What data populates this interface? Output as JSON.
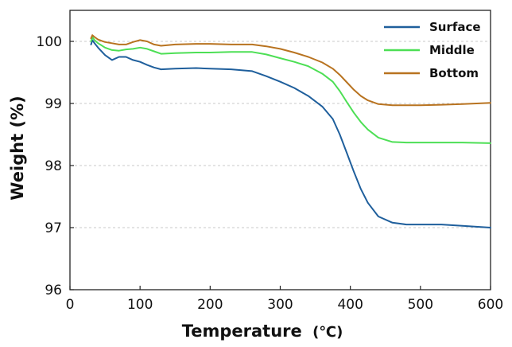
{
  "chart_data": {
    "type": "line",
    "title": "",
    "xlabel": "Temperature",
    "xlabel_unit": "(℃)",
    "ylabel": "Weight (%)",
    "xlim": [
      0,
      600
    ],
    "ylim": [
      96,
      100.5
    ],
    "xticks": [
      "0",
      "100",
      "200",
      "300",
      "400",
      "500",
      "600"
    ],
    "yticks": [
      "96",
      "97",
      "98",
      "99",
      "100"
    ],
    "grid": "horizontal-dashed",
    "legend_position": "top-right",
    "series": [
      {
        "name": "Surface",
        "color": "#1f5f9c",
        "x": [
          30,
          32,
          35,
          40,
          50,
          60,
          70,
          80,
          90,
          100,
          110,
          120,
          130,
          150,
          180,
          200,
          230,
          260,
          280,
          300,
          320,
          340,
          360,
          375,
          385,
          395,
          405,
          415,
          425,
          440,
          460,
          480,
          500,
          530,
          560,
          600
        ],
        "y": [
          99.95,
          100.02,
          99.97,
          99.9,
          99.78,
          99.7,
          99.75,
          99.75,
          99.7,
          99.67,
          99.62,
          99.58,
          99.55,
          99.56,
          99.57,
          99.56,
          99.55,
          99.52,
          99.44,
          99.35,
          99.25,
          99.12,
          98.95,
          98.75,
          98.5,
          98.2,
          97.9,
          97.62,
          97.4,
          97.18,
          97.08,
          97.05,
          97.05,
          97.05,
          97.03,
          97.0
        ]
      },
      {
        "name": "Middle",
        "color": "#4ddf55",
        "x": [
          30,
          32,
          35,
          40,
          50,
          60,
          70,
          80,
          90,
          100,
          110,
          120,
          130,
          150,
          180,
          200,
          230,
          260,
          280,
          300,
          320,
          340,
          360,
          375,
          385,
          395,
          405,
          415,
          425,
          440,
          460,
          480,
          500,
          530,
          560,
          600
        ],
        "y": [
          100.0,
          100.07,
          100.02,
          99.97,
          99.9,
          99.86,
          99.85,
          99.87,
          99.88,
          99.9,
          99.88,
          99.84,
          99.8,
          99.81,
          99.82,
          99.82,
          99.83,
          99.83,
          99.79,
          99.73,
          99.67,
          99.6,
          99.48,
          99.35,
          99.2,
          99.02,
          98.85,
          98.7,
          98.58,
          98.45,
          98.38,
          98.37,
          98.37,
          98.37,
          98.37,
          98.36
        ]
      },
      {
        "name": "Bottom",
        "color": "#b87320",
        "x": [
          30,
          32,
          35,
          40,
          50,
          60,
          70,
          80,
          90,
          100,
          110,
          120,
          130,
          150,
          180,
          200,
          230,
          260,
          280,
          300,
          320,
          340,
          360,
          375,
          385,
          395,
          405,
          415,
          425,
          440,
          460,
          480,
          500,
          530,
          560,
          600
        ],
        "y": [
          100.05,
          100.1,
          100.07,
          100.03,
          99.99,
          99.97,
          99.95,
          99.95,
          99.99,
          100.02,
          100.0,
          99.95,
          99.93,
          99.95,
          99.96,
          99.96,
          99.95,
          99.95,
          99.92,
          99.88,
          99.82,
          99.75,
          99.66,
          99.56,
          99.46,
          99.34,
          99.22,
          99.12,
          99.05,
          98.99,
          98.97,
          98.97,
          98.97,
          98.98,
          98.99,
          99.01
        ]
      }
    ]
  }
}
